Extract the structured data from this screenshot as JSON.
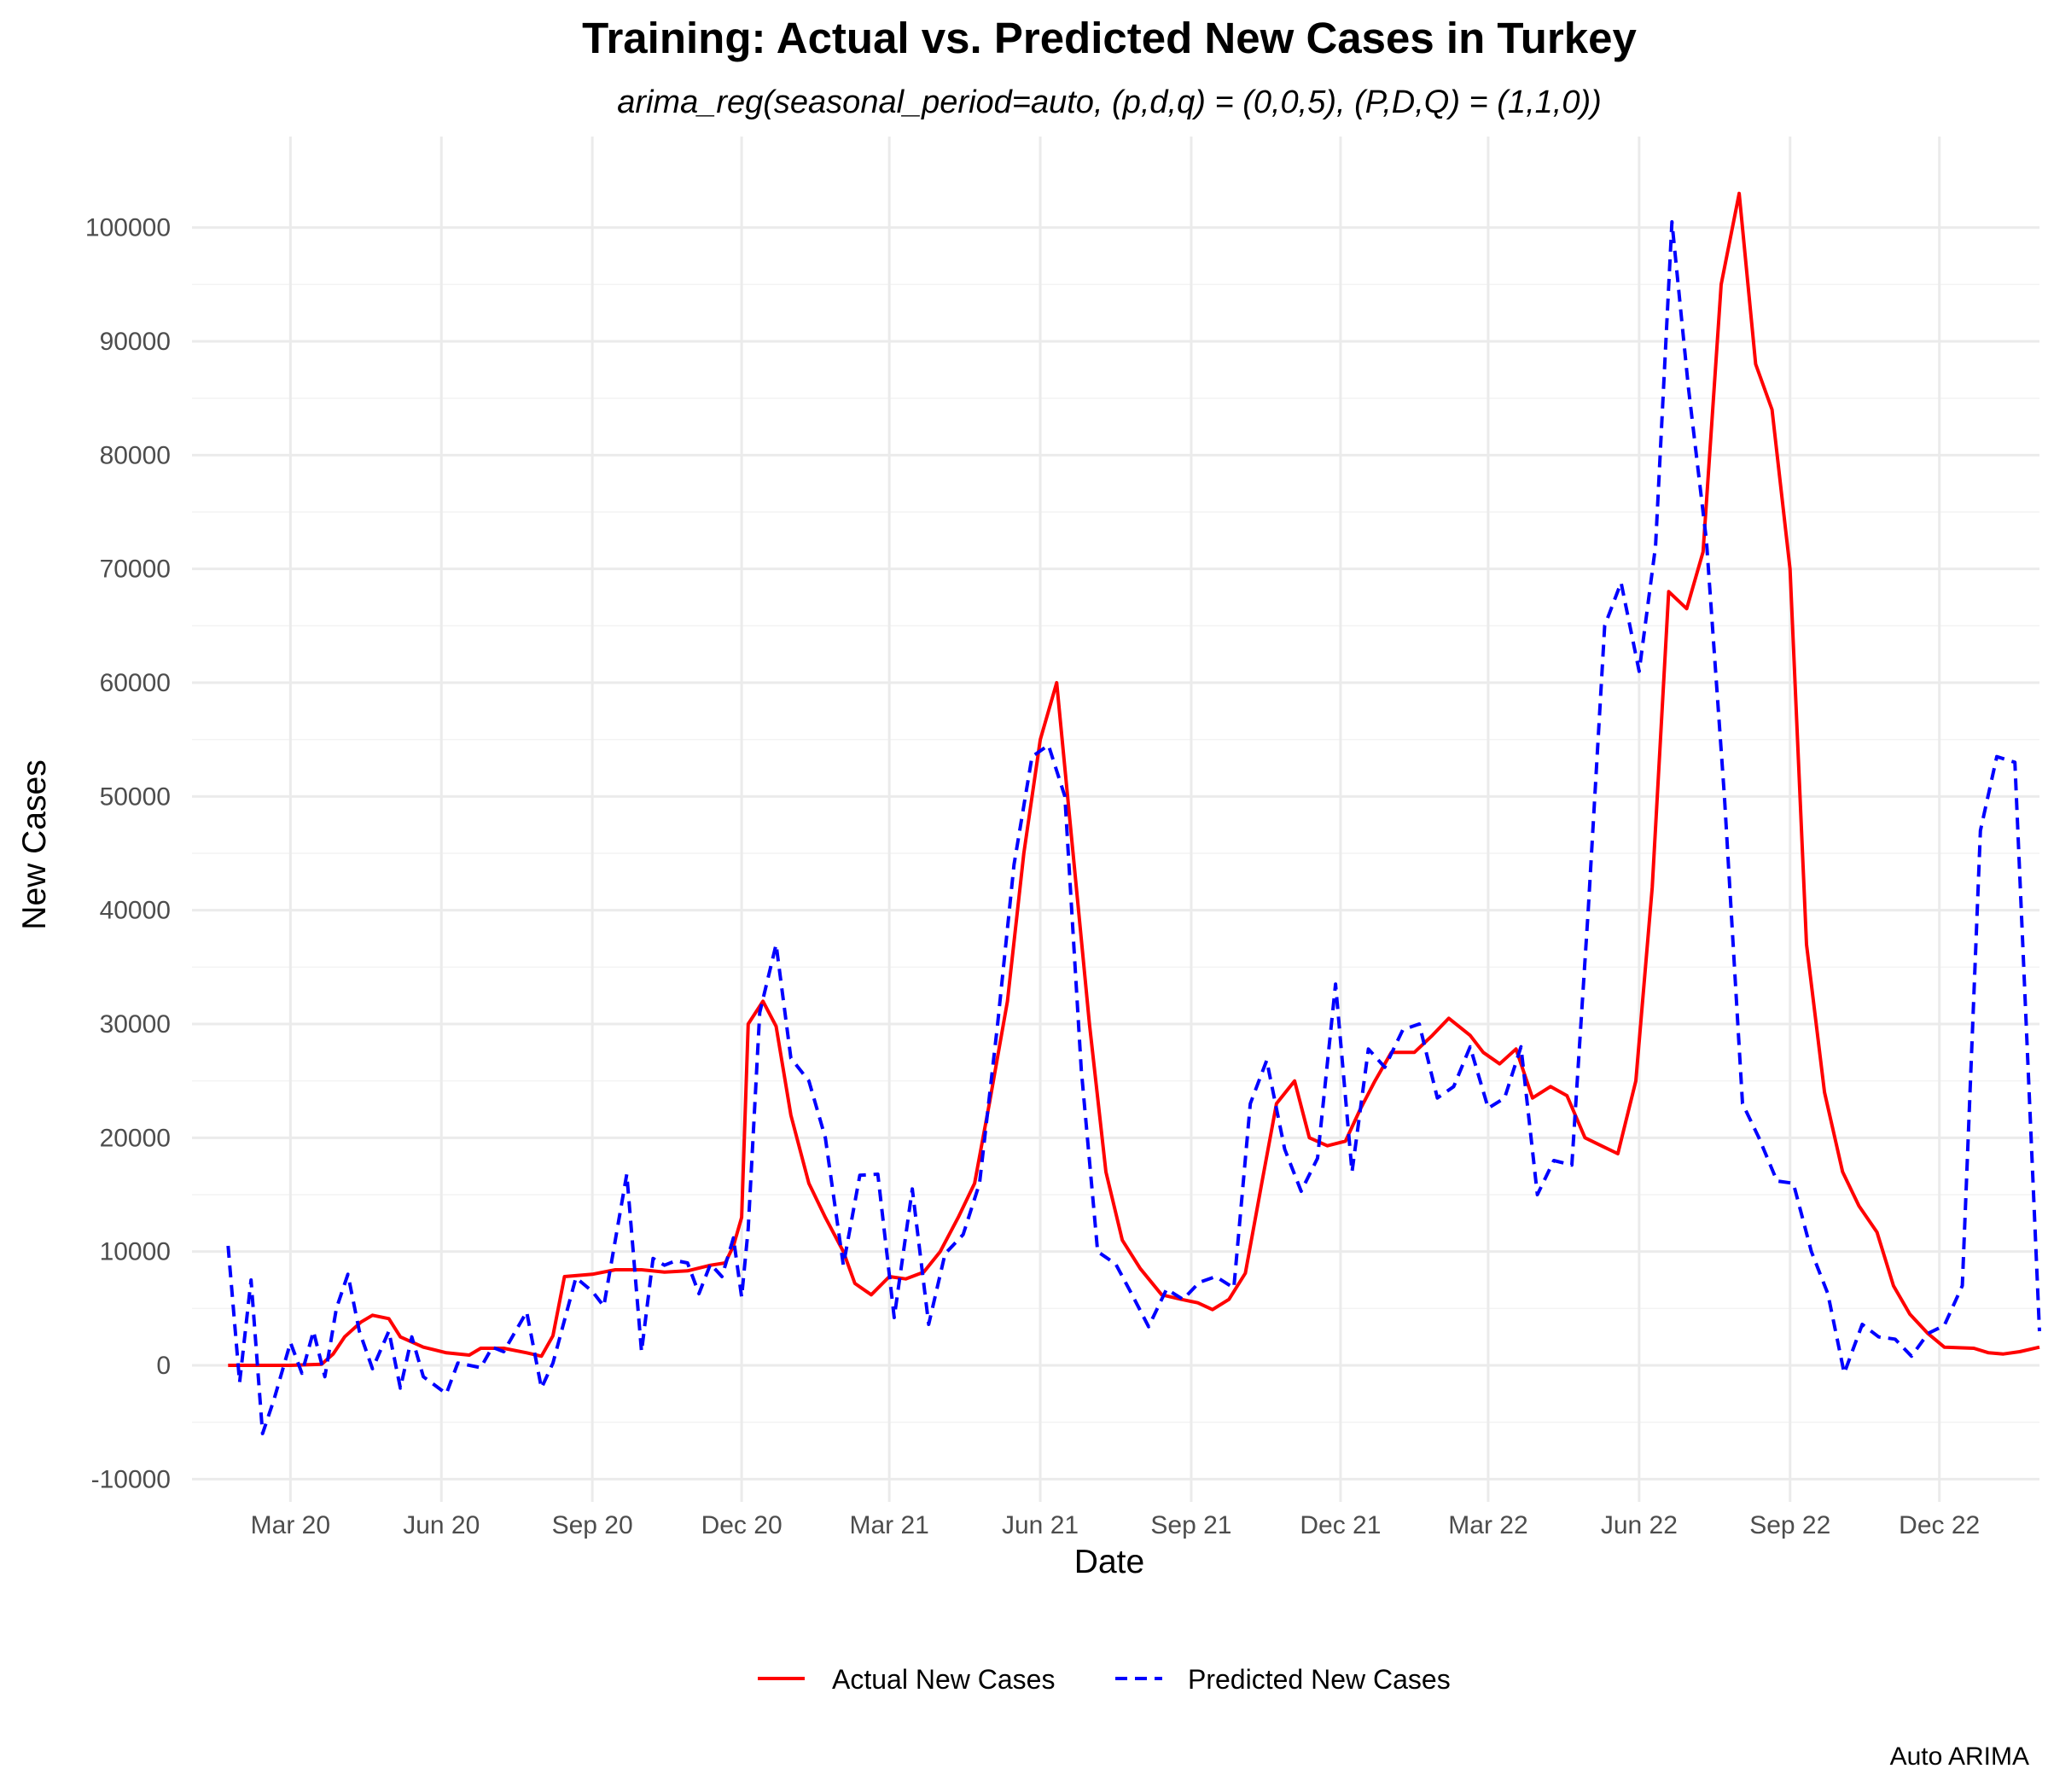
{
  "chart_data": {
    "type": "line",
    "title": "Training: Actual vs. Predicted New Cases in Turkey",
    "subtitle": "arima_reg(seasonal_period=auto, (p,d,q) = (0,0,5), (P,D,Q) = (1,1,0))",
    "xlabel": "Date",
    "ylabel": "New Cases",
    "caption": "Auto ARIMA",
    "ylim": [
      -12000,
      108000
    ],
    "xlim": [
      "2020-01-01",
      "2023-01-31"
    ],
    "x_ticks": [
      {
        "date": "2020-03-01",
        "label": "Mar 20"
      },
      {
        "date": "2020-06-01",
        "label": "Jun 20"
      },
      {
        "date": "2020-09-01",
        "label": "Sep 20"
      },
      {
        "date": "2020-12-01",
        "label": "Dec 20"
      },
      {
        "date": "2021-03-01",
        "label": "Mar 21"
      },
      {
        "date": "2021-06-01",
        "label": "Jun 21"
      },
      {
        "date": "2021-09-01",
        "label": "Sep 21"
      },
      {
        "date": "2021-12-01",
        "label": "Dec 21"
      },
      {
        "date": "2022-03-01",
        "label": "Mar 22"
      },
      {
        "date": "2022-06-01",
        "label": "Jun 22"
      },
      {
        "date": "2022-09-01",
        "label": "Sep 22"
      },
      {
        "date": "2022-12-01",
        "label": "Dec 22"
      }
    ],
    "y_ticks": [
      -10000,
      0,
      10000,
      20000,
      30000,
      40000,
      50000,
      60000,
      70000,
      80000,
      90000,
      100000
    ],
    "grid": true,
    "legend_position": "bottom",
    "series": [
      {
        "name": "Actual New Cases",
        "color": "#ff0000",
        "dash": "solid",
        "points": [
          [
            "2020-01-23",
            0
          ],
          [
            "2020-03-01",
            0
          ],
          [
            "2020-03-20",
            100
          ],
          [
            "2020-03-27",
            1000
          ],
          [
            "2020-04-03",
            2500
          ],
          [
            "2020-04-13",
            3800
          ],
          [
            "2020-04-20",
            4400
          ],
          [
            "2020-04-30",
            4100
          ],
          [
            "2020-05-07",
            2500
          ],
          [
            "2020-05-21",
            1600
          ],
          [
            "2020-06-04",
            1100
          ],
          [
            "2020-06-18",
            900
          ],
          [
            "2020-06-25",
            1500
          ],
          [
            "2020-07-09",
            1500
          ],
          [
            "2020-07-23",
            1100
          ],
          [
            "2020-08-01",
            800
          ],
          [
            "2020-08-08",
            2600
          ],
          [
            "2020-08-15",
            7800
          ],
          [
            "2020-09-01",
            8000
          ],
          [
            "2020-09-15",
            8400
          ],
          [
            "2020-10-01",
            8400
          ],
          [
            "2020-10-15",
            8200
          ],
          [
            "2020-10-29",
            8300
          ],
          [
            "2020-11-12",
            8800
          ],
          [
            "2020-11-21",
            9000
          ],
          [
            "2020-11-26",
            10500
          ],
          [
            "2020-12-01",
            13000
          ],
          [
            "2020-12-05",
            30000
          ],
          [
            "2020-12-14",
            32000
          ],
          [
            "2020-12-22",
            29800
          ],
          [
            "2020-12-31",
            22000
          ],
          [
            "2021-01-11",
            16000
          ],
          [
            "2021-01-21",
            13000
          ],
          [
            "2021-02-01",
            10000
          ],
          [
            "2021-02-08",
            7200
          ],
          [
            "2021-02-18",
            6200
          ],
          [
            "2021-03-01",
            7800
          ],
          [
            "2021-03-11",
            7600
          ],
          [
            "2021-03-22",
            8200
          ],
          [
            "2021-04-01",
            10000
          ],
          [
            "2021-04-12",
            13000
          ],
          [
            "2021-04-22",
            16000
          ],
          [
            "2021-05-01",
            23000
          ],
          [
            "2021-05-12",
            32000
          ],
          [
            "2021-05-22",
            45000
          ],
          [
            "2021-06-01",
            55000
          ],
          [
            "2021-06-11",
            60000
          ],
          [
            "2021-06-21",
            45000
          ],
          [
            "2021-07-01",
            30000
          ],
          [
            "2021-07-11",
            17000
          ],
          [
            "2021-07-21",
            11000
          ],
          [
            "2021-08-01",
            8500
          ],
          [
            "2021-08-14",
            6200
          ],
          [
            "2021-08-26",
            5800
          ],
          [
            "2021-09-05",
            5500
          ],
          [
            "2021-09-14",
            4900
          ],
          [
            "2021-09-24",
            5800
          ],
          [
            "2021-10-04",
            8100
          ],
          [
            "2021-10-14",
            16000
          ],
          [
            "2021-10-23",
            23000
          ],
          [
            "2021-11-03",
            25000
          ],
          [
            "2021-11-12",
            20000
          ],
          [
            "2021-11-23",
            19300
          ],
          [
            "2021-12-04",
            19700
          ],
          [
            "2021-12-13",
            22500
          ],
          [
            "2021-12-22",
            25000
          ],
          [
            "2022-01-01",
            27500
          ],
          [
            "2022-01-15",
            27500
          ],
          [
            "2022-01-26",
            29000
          ],
          [
            "2022-02-05",
            30500
          ],
          [
            "2022-02-18",
            29000
          ],
          [
            "2022-02-26",
            27500
          ],
          [
            "2022-03-08",
            26500
          ],
          [
            "2022-03-18",
            27800
          ],
          [
            "2022-03-28",
            23500
          ],
          [
            "2022-04-08",
            24500
          ],
          [
            "2022-04-18",
            23700
          ],
          [
            "2022-04-29",
            20000
          ],
          [
            "2022-05-09",
            19300
          ],
          [
            "2022-05-19",
            18600
          ],
          [
            "2022-05-30",
            25000
          ],
          [
            "2022-06-09",
            42000
          ],
          [
            "2022-06-19",
            68000
          ],
          [
            "2022-06-30",
            66500
          ],
          [
            "2022-07-10",
            71500
          ],
          [
            "2022-07-21",
            95000
          ],
          [
            "2022-08-01",
            103000
          ],
          [
            "2022-08-11",
            88000
          ],
          [
            "2022-08-21",
            84000
          ],
          [
            "2022-09-01",
            70000
          ],
          [
            "2022-09-11",
            37000
          ],
          [
            "2022-09-22",
            24000
          ],
          [
            "2022-10-03",
            17000
          ],
          [
            "2022-10-13",
            14000
          ],
          [
            "2022-10-24",
            11700
          ],
          [
            "2022-11-03",
            7000
          ],
          [
            "2022-11-13",
            4500
          ],
          [
            "2022-11-24",
            2800
          ],
          [
            "2022-12-04",
            1600
          ],
          [
            "2022-12-22",
            1500
          ],
          [
            "2022-12-31",
            1100
          ],
          [
            "2023-01-09",
            1000
          ],
          [
            "2023-01-19",
            1200
          ],
          [
            "2023-01-31",
            1600
          ]
        ]
      },
      {
        "name": "Predicted New Cases",
        "color": "#0000ff",
        "dash": "dashed",
        "points": [
          [
            "2020-01-23",
            10500
          ],
          [
            "2020-01-30",
            -1500
          ],
          [
            "2020-02-06",
            7500
          ],
          [
            "2020-02-13",
            -6000
          ],
          [
            "2020-02-20",
            -3000
          ],
          [
            "2020-03-01",
            2000
          ],
          [
            "2020-03-08",
            -700
          ],
          [
            "2020-03-15",
            3000
          ],
          [
            "2020-03-22",
            -1000
          ],
          [
            "2020-03-29",
            5000
          ],
          [
            "2020-04-05",
            8000
          ],
          [
            "2020-04-12",
            3000
          ],
          [
            "2020-04-20",
            -300
          ],
          [
            "2020-04-30",
            3000
          ],
          [
            "2020-05-07",
            -2000
          ],
          [
            "2020-05-14",
            2500
          ],
          [
            "2020-05-21",
            -1000
          ],
          [
            "2020-06-04",
            -2500
          ],
          [
            "2020-06-11",
            200
          ],
          [
            "2020-06-25",
            -200
          ],
          [
            "2020-07-02",
            1600
          ],
          [
            "2020-07-09",
            1200
          ],
          [
            "2020-07-23",
            4700
          ],
          [
            "2020-08-01",
            -2000
          ],
          [
            "2020-08-08",
            200
          ],
          [
            "2020-08-22",
            7700
          ],
          [
            "2020-09-01",
            6500
          ],
          [
            "2020-09-08",
            5200
          ],
          [
            "2020-09-22",
            16800
          ],
          [
            "2020-10-01",
            1200
          ],
          [
            "2020-10-08",
            9400
          ],
          [
            "2020-10-15",
            8800
          ],
          [
            "2020-10-22",
            9200
          ],
          [
            "2020-10-29",
            9000
          ],
          [
            "2020-11-05",
            6300
          ],
          [
            "2020-11-12",
            8900
          ],
          [
            "2020-11-19",
            7800
          ],
          [
            "2020-11-26",
            11200
          ],
          [
            "2020-12-01",
            6000
          ],
          [
            "2020-12-05",
            12000
          ],
          [
            "2020-12-12",
            31000
          ],
          [
            "2020-12-22",
            37000
          ],
          [
            "2020-12-31",
            27000
          ],
          [
            "2021-01-11",
            25000
          ],
          [
            "2021-01-21",
            20000
          ],
          [
            "2021-02-01",
            8800
          ],
          [
            "2021-02-11",
            16700
          ],
          [
            "2021-02-22",
            16800
          ],
          [
            "2021-03-04",
            4200
          ],
          [
            "2021-03-15",
            15500
          ],
          [
            "2021-03-25",
            3600
          ],
          [
            "2021-04-04",
            9800
          ],
          [
            "2021-04-15",
            11500
          ],
          [
            "2021-04-25",
            16000
          ],
          [
            "2021-05-06",
            30000
          ],
          [
            "2021-05-16",
            44000
          ],
          [
            "2021-05-27",
            53500
          ],
          [
            "2021-06-06",
            54500
          ],
          [
            "2021-06-16",
            50000
          ],
          [
            "2021-06-26",
            26000
          ],
          [
            "2021-07-06",
            10000
          ],
          [
            "2021-07-17",
            8900
          ],
          [
            "2021-07-27",
            6200
          ],
          [
            "2021-08-06",
            3400
          ],
          [
            "2021-08-17",
            6700
          ],
          [
            "2021-08-27",
            5800
          ],
          [
            "2021-09-06",
            7300
          ],
          [
            "2021-09-16",
            7800
          ],
          [
            "2021-09-27",
            6800
          ],
          [
            "2021-10-07",
            23000
          ],
          [
            "2021-10-17",
            26800
          ],
          [
            "2021-10-28",
            19000
          ],
          [
            "2021-11-07",
            15300
          ],
          [
            "2021-11-17",
            18200
          ],
          [
            "2021-11-28",
            33500
          ],
          [
            "2021-12-08",
            17000
          ],
          [
            "2021-12-18",
            27800
          ],
          [
            "2021-12-28",
            26200
          ],
          [
            "2022-01-08",
            29500
          ],
          [
            "2022-01-18",
            30000
          ],
          [
            "2022-01-29",
            23500
          ],
          [
            "2022-02-08",
            24500
          ],
          [
            "2022-02-18",
            28000
          ],
          [
            "2022-03-01",
            22600
          ],
          [
            "2022-03-11",
            23500
          ],
          [
            "2022-03-21",
            28000
          ],
          [
            "2022-03-31",
            15000
          ],
          [
            "2022-04-10",
            18000
          ],
          [
            "2022-04-21",
            17600
          ],
          [
            "2022-05-01",
            40000
          ],
          [
            "2022-05-11",
            65000
          ],
          [
            "2022-05-21",
            68800
          ],
          [
            "2022-06-01",
            61000
          ],
          [
            "2022-06-11",
            72000
          ],
          [
            "2022-06-21",
            100500
          ],
          [
            "2022-07-01",
            86000
          ],
          [
            "2022-07-12",
            72500
          ],
          [
            "2022-07-23",
            50000
          ],
          [
            "2022-08-03",
            23000
          ],
          [
            "2022-08-13",
            20000
          ],
          [
            "2022-08-24",
            16200
          ],
          [
            "2022-09-03",
            16000
          ],
          [
            "2022-09-14",
            10000
          ],
          [
            "2022-09-24",
            6300
          ],
          [
            "2022-10-04",
            -700
          ],
          [
            "2022-10-15",
            3600
          ],
          [
            "2022-10-25",
            2500
          ],
          [
            "2022-11-04",
            2300
          ],
          [
            "2022-11-14",
            800
          ],
          [
            "2022-11-24",
            2800
          ],
          [
            "2022-12-04",
            3500
          ],
          [
            "2022-12-15",
            7000
          ],
          [
            "2022-12-26",
            47000
          ],
          [
            "2023-01-05",
            53500
          ],
          [
            "2023-01-16",
            53000
          ],
          [
            "2023-01-31",
            3000
          ]
        ]
      }
    ]
  }
}
